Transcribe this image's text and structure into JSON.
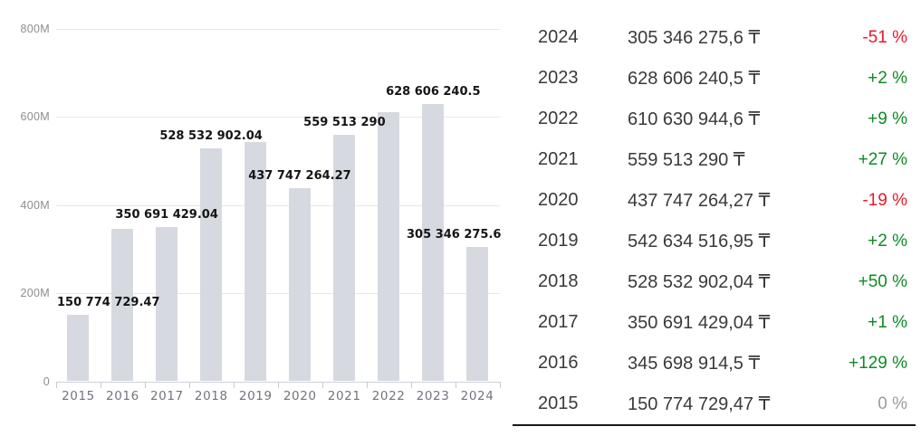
{
  "chart_data": {
    "type": "bar",
    "title": "",
    "xlabel": "",
    "ylabel": "",
    "ylim": [
      0,
      800000000
    ],
    "grid": true,
    "legend": "none",
    "categories": [
      "2015",
      "2016",
      "2017",
      "2018",
      "2019",
      "2020",
      "2021",
      "2022",
      "2023",
      "2024"
    ],
    "values": [
      150774729.47,
      345698914.5,
      350691429.04,
      528532902.04,
      542634516.95,
      437747264.27,
      559513290,
      610630944.6,
      628606240.5,
      305346275.6
    ],
    "bar_labels": [
      "150 774 729.47",
      "",
      "350 691 429.04",
      "528 532 902.04",
      "",
      "437 747 264.27",
      "559 513 290",
      "",
      "628 606 240.5",
      "305 346 275.6"
    ],
    "y_ticks": [
      {
        "label": "0",
        "value": 0
      },
      {
        "label": "200M",
        "value": 200000000
      },
      {
        "label": "400M",
        "value": 400000000
      },
      {
        "label": "600M",
        "value": 600000000
      },
      {
        "label": "800M",
        "value": 800000000
      }
    ]
  },
  "table": {
    "rows": [
      {
        "year": "2024",
        "value": "305 346 275,6 ₸",
        "change": "-51 %",
        "trend": "negative"
      },
      {
        "year": "2023",
        "value": "628 606 240,5 ₸",
        "change": "+2 %",
        "trend": "positive"
      },
      {
        "year": "2022",
        "value": "610 630 944,6 ₸",
        "change": "+9 %",
        "trend": "positive"
      },
      {
        "year": "2021",
        "value": "559 513 290 ₸",
        "change": "+27 %",
        "trend": "positive"
      },
      {
        "year": "2020",
        "value": "437 747 264,27 ₸",
        "change": "-19 %",
        "trend": "negative"
      },
      {
        "year": "2019",
        "value": "542 634 516,95 ₸",
        "change": "+2 %",
        "trend": "positive"
      },
      {
        "year": "2018",
        "value": "528 532 902,04 ₸",
        "change": "+50 %",
        "trend": "positive"
      },
      {
        "year": "2017",
        "value": "350 691 429,04 ₸",
        "change": "+1 %",
        "trend": "positive"
      },
      {
        "year": "2016",
        "value": "345 698 914,5 ₸",
        "change": "+129 %",
        "trend": "positive"
      },
      {
        "year": "2015",
        "value": "150 774 729,47 ₸",
        "change": "0 %",
        "trend": "neutral"
      }
    ]
  },
  "colors": {
    "bar_fill": "#d6d9e0",
    "gridline": "#e7e7e7",
    "axis": "#cdd1da",
    "positive": "#0e8b22",
    "negative": "#e9192b",
    "neutral": "#9c9c9c"
  }
}
